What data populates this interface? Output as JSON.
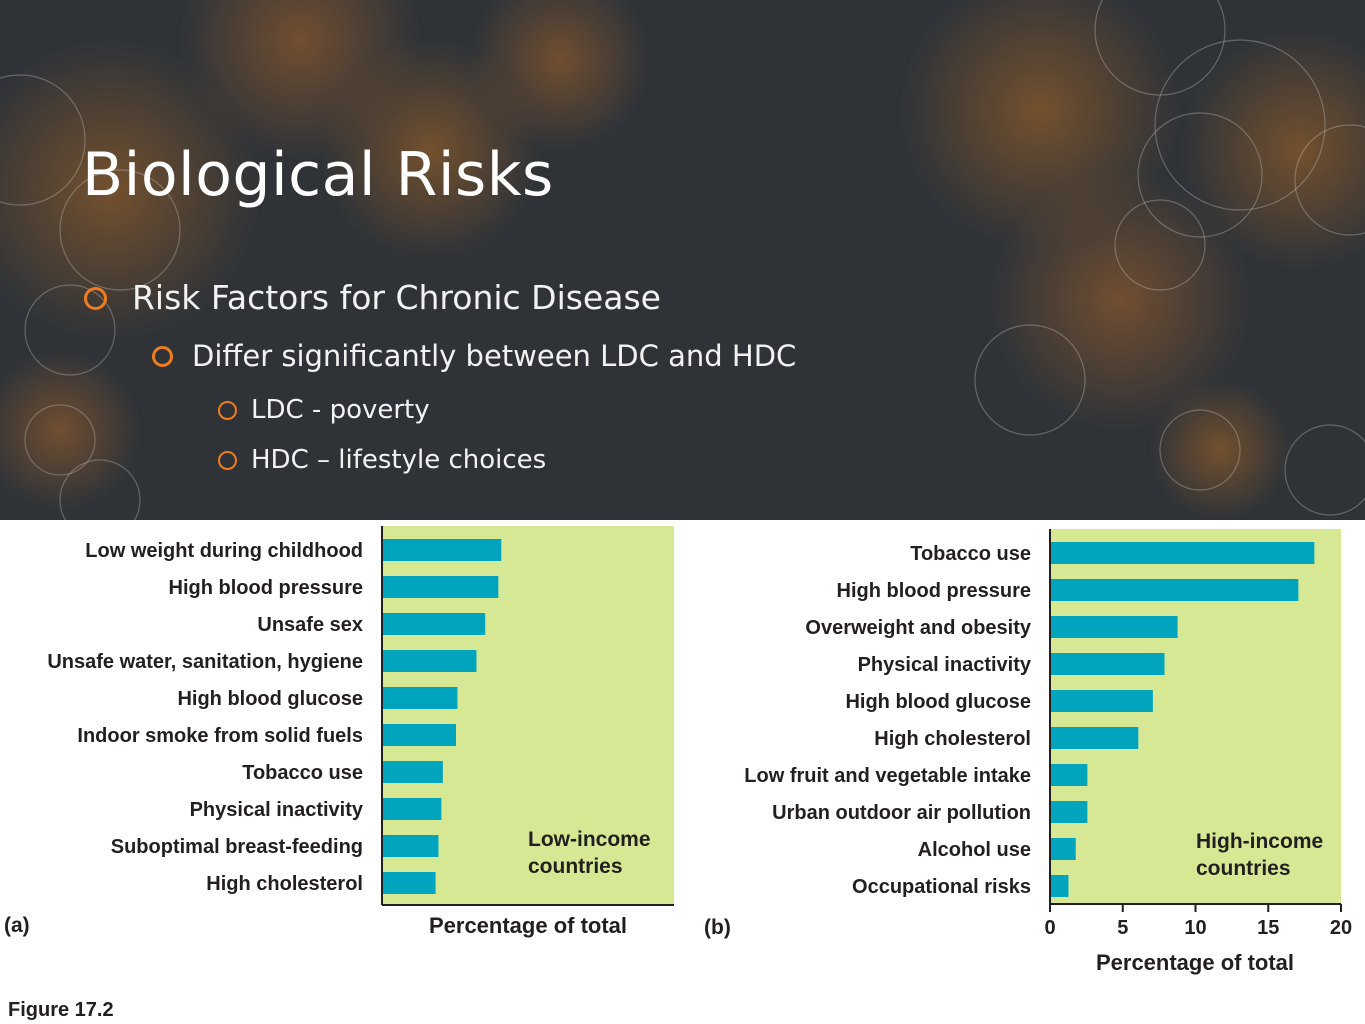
{
  "slide": {
    "title": "Biological Risks",
    "bullets": [
      "Risk Factors for Chronic Disease",
      "Differ significantly between LDC and HDC",
      "LDC - poverty",
      "HDC – lifestyle choices"
    ],
    "colors": {
      "background": "#2f3338",
      "bullet_ring": "#f07c1d",
      "bar": "#00a5bd",
      "plot_bg": "#d6e893"
    }
  },
  "figure": {
    "caption": "Figure 17.2",
    "panel_a_label": "(a)",
    "panel_b_label": "(b)"
  },
  "chart_data": [
    {
      "type": "bar",
      "orientation": "horizontal",
      "categories": [
        "Low weight during childhood",
        "High blood pressure",
        "Unsafe sex",
        "Unsafe water, sanitation, hygiene",
        "High blood glucose",
        "Indoor smoke from solid fuels",
        "Tobacco use",
        "Physical inactivity",
        "Suboptimal breast-feeding",
        "High cholesterol"
      ],
      "values": [
        8.1,
        7.9,
        7.0,
        6.4,
        5.1,
        5.0,
        4.1,
        4.0,
        3.8,
        3.6
      ],
      "xlim": [
        0,
        20
      ],
      "xlabel": "Percentage of total",
      "annotation": [
        "Low-income",
        "countries"
      ],
      "ticks_shown": false
    },
    {
      "type": "bar",
      "orientation": "horizontal",
      "categories": [
        "Tobacco use",
        "High blood pressure",
        "Overweight and obesity",
        "Physical inactivity",
        "High blood glucose",
        "High cholesterol",
        "Low fruit and vegetable intake",
        "Urban outdoor air pollution",
        "Alcohol use",
        "Occupational risks"
      ],
      "values": [
        18.1,
        17.0,
        8.7,
        7.8,
        7.0,
        6.0,
        2.5,
        2.5,
        1.7,
        1.2
      ],
      "xlim": [
        0,
        20
      ],
      "xticks": [
        "0",
        "5",
        "10",
        "15",
        "20"
      ],
      "xlabel": "Percentage of total",
      "annotation": [
        "High-income",
        "countries"
      ],
      "ticks_shown": true
    }
  ]
}
